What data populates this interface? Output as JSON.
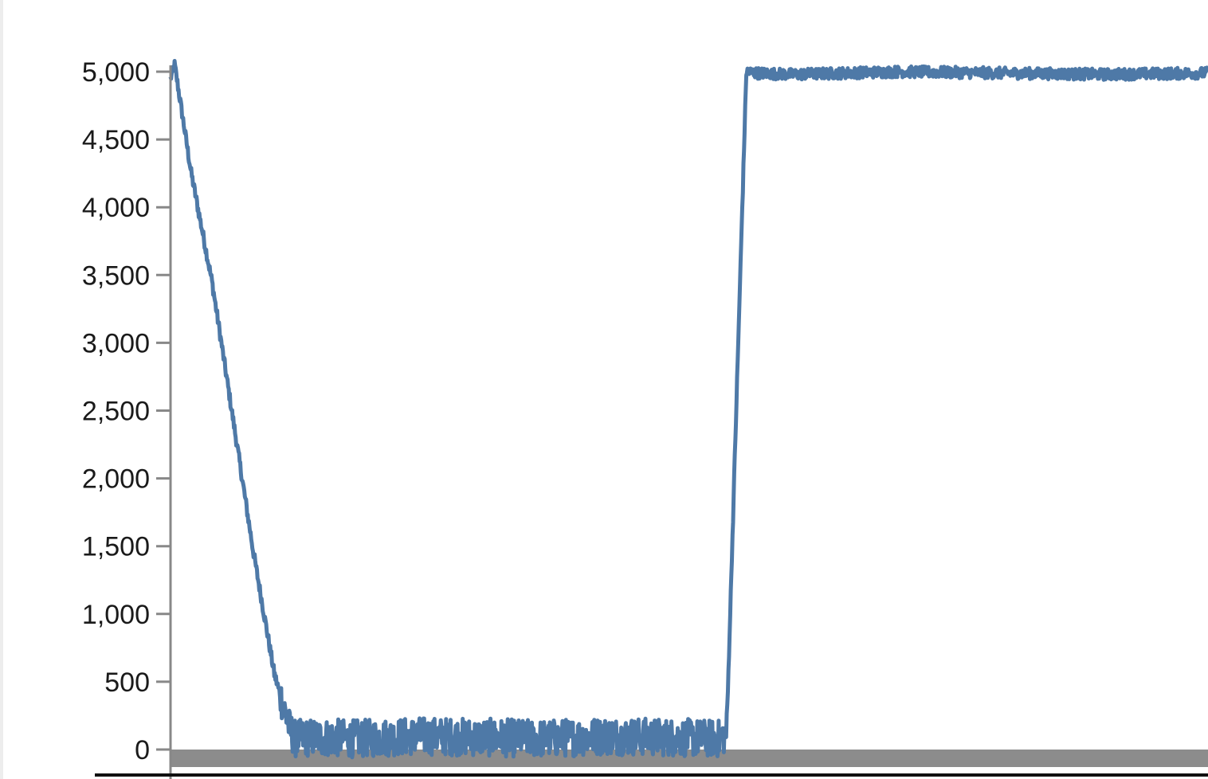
{
  "chart_data": {
    "type": "line",
    "title": "",
    "xlabel": "",
    "ylabel": "",
    "ylim": [
      0,
      5000
    ],
    "yticks": [
      0,
      500,
      1000,
      1500,
      2000,
      2500,
      3000,
      3500,
      4000,
      4500,
      5000
    ],
    "ytick_labels": [
      "0",
      "500",
      "1,000",
      "1,500",
      "2,000",
      "2,500",
      "3,000",
      "3,500",
      "4,000",
      "4,500",
      "5,000"
    ],
    "xlim": [
      0,
      100
    ],
    "grid": false,
    "legend": "none",
    "colors": {
      "line": "#4e79a7",
      "axis": "#888888",
      "baseline_band": "#8c8c8c",
      "bottom_border": "#111111"
    },
    "series": [
      {
        "values_x": [
          0,
          0.4,
          2,
          4,
          6,
          8,
          10,
          11.5,
          12,
          14,
          18,
          24,
          30,
          36,
          42,
          48,
          53,
          53.6,
          55.5,
          56.5,
          60,
          70,
          80,
          90,
          100
        ],
        "values_y": [
          4950,
          5050,
          4250,
          3450,
          2450,
          1450,
          560,
          150,
          80,
          90,
          80,
          100,
          90,
          80,
          100,
          90,
          80,
          120,
          5000,
          4990,
          4980,
          5000,
          4990,
          4980,
          4990
        ],
        "noise": 70
      }
    ]
  }
}
